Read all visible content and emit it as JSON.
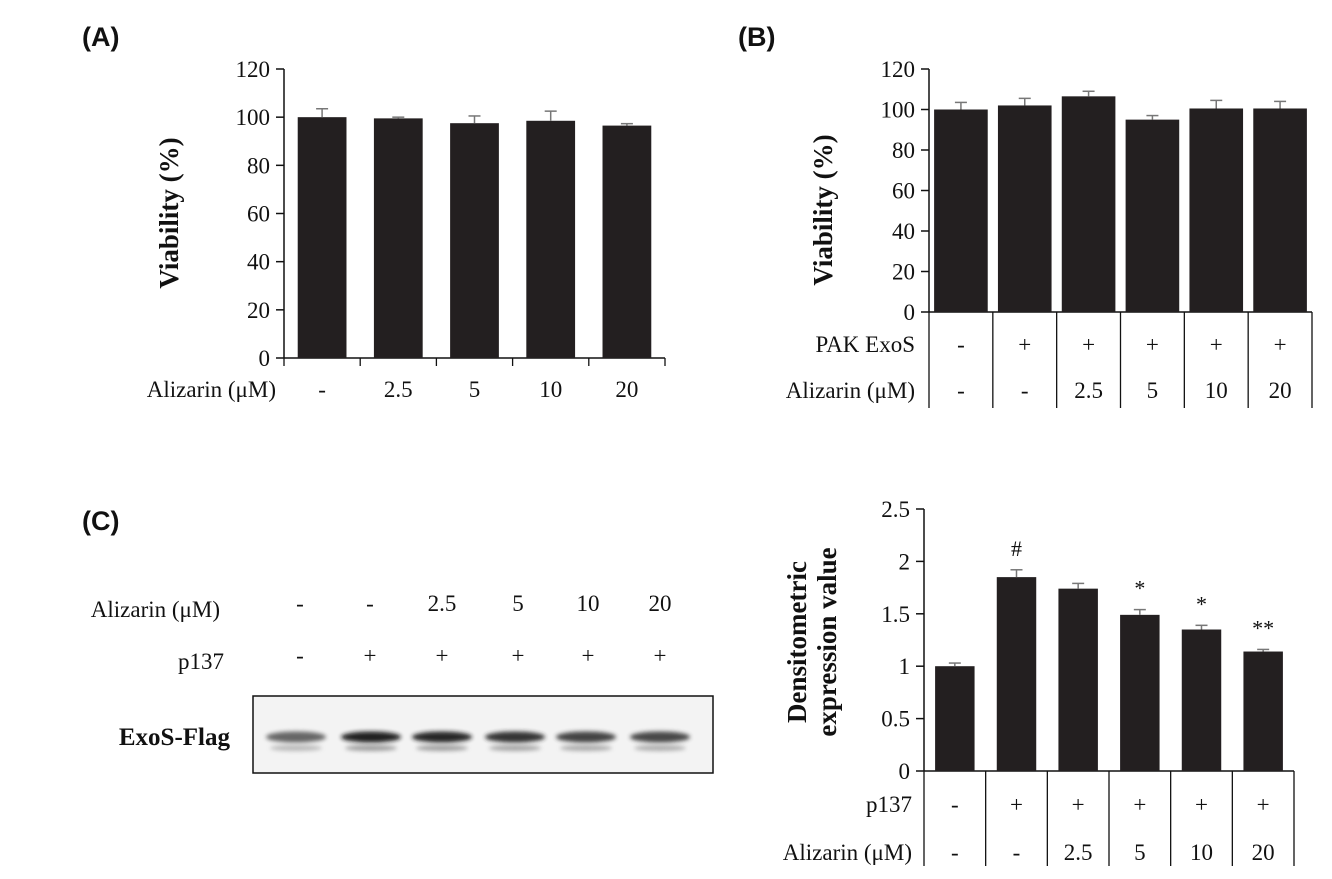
{
  "panel_labels": {
    "a": "(A)",
    "b": "(B)",
    "c": "(C)"
  },
  "colors": {
    "bar": "#231f20",
    "axis": "#111111",
    "errorbar": "#777777"
  },
  "chart_data": [
    {
      "id": "A",
      "type": "bar",
      "ylabel": "Viability (%)",
      "ylim": [
        0,
        120
      ],
      "yticks": [
        0,
        20,
        40,
        60,
        80,
        100,
        120
      ],
      "values": [
        100,
        99.5,
        97.5,
        98.5,
        96.5
      ],
      "errors": [
        3.5,
        0.5,
        3,
        4,
        0.8
      ],
      "rows": [
        {
          "label": "Alizarin (μM)",
          "values": [
            "-",
            "2.5",
            "5",
            "10",
            "20"
          ]
        }
      ]
    },
    {
      "id": "B",
      "type": "bar",
      "ylabel": "Viability (%)",
      "ylim": [
        0,
        120
      ],
      "yticks": [
        0,
        20,
        40,
        60,
        80,
        100,
        120
      ],
      "values": [
        100,
        102,
        106.5,
        95,
        100.5,
        100.5
      ],
      "errors": [
        3.5,
        3.5,
        2.5,
        2,
        4,
        3.5
      ],
      "rows": [
        {
          "label": "PAK ExoS",
          "values": [
            "-",
            "+",
            "+",
            "+",
            "+",
            "+"
          ]
        },
        {
          "label": "Alizarin (μM)",
          "values": [
            "-",
            "-",
            "2.5",
            "5",
            "10",
            "20"
          ]
        }
      ]
    },
    {
      "id": "C",
      "type": "bar",
      "ylabel": [
        "Densitometric",
        "expression value"
      ],
      "ylim": [
        0,
        2.5
      ],
      "yticks": [
        0,
        0.5,
        1,
        1.5,
        2,
        2.5
      ],
      "ytick_labels": [
        "0",
        "0.5",
        "1",
        "1.5",
        "2",
        "2.5"
      ],
      "values": [
        1.0,
        1.85,
        1.74,
        1.49,
        1.35,
        1.14
      ],
      "errors": [
        0.03,
        0.07,
        0.05,
        0.05,
        0.04,
        0.02
      ],
      "annotations": [
        "",
        "#",
        "",
        "*",
        "*",
        "**"
      ],
      "rows": [
        {
          "label": "p137",
          "values": [
            "-",
            "+",
            "+",
            "+",
            "+",
            "+"
          ]
        },
        {
          "label": "Alizarin (μM)",
          "values": [
            "-",
            "-",
            "2.5",
            "5",
            "10",
            "20"
          ]
        }
      ]
    }
  ],
  "blot": {
    "rows": [
      {
        "label": "Alizarin (μM)",
        "values": [
          "-",
          "-",
          "2.5",
          "5",
          "10",
          "20"
        ]
      },
      {
        "label": "p137",
        "values": [
          "-",
          "+",
          "+",
          "+",
          "+",
          "+"
        ]
      }
    ],
    "band_label": "ExoS-Flag",
    "band_intensity": [
      0.62,
      0.95,
      0.92,
      0.85,
      0.78,
      0.75
    ]
  }
}
